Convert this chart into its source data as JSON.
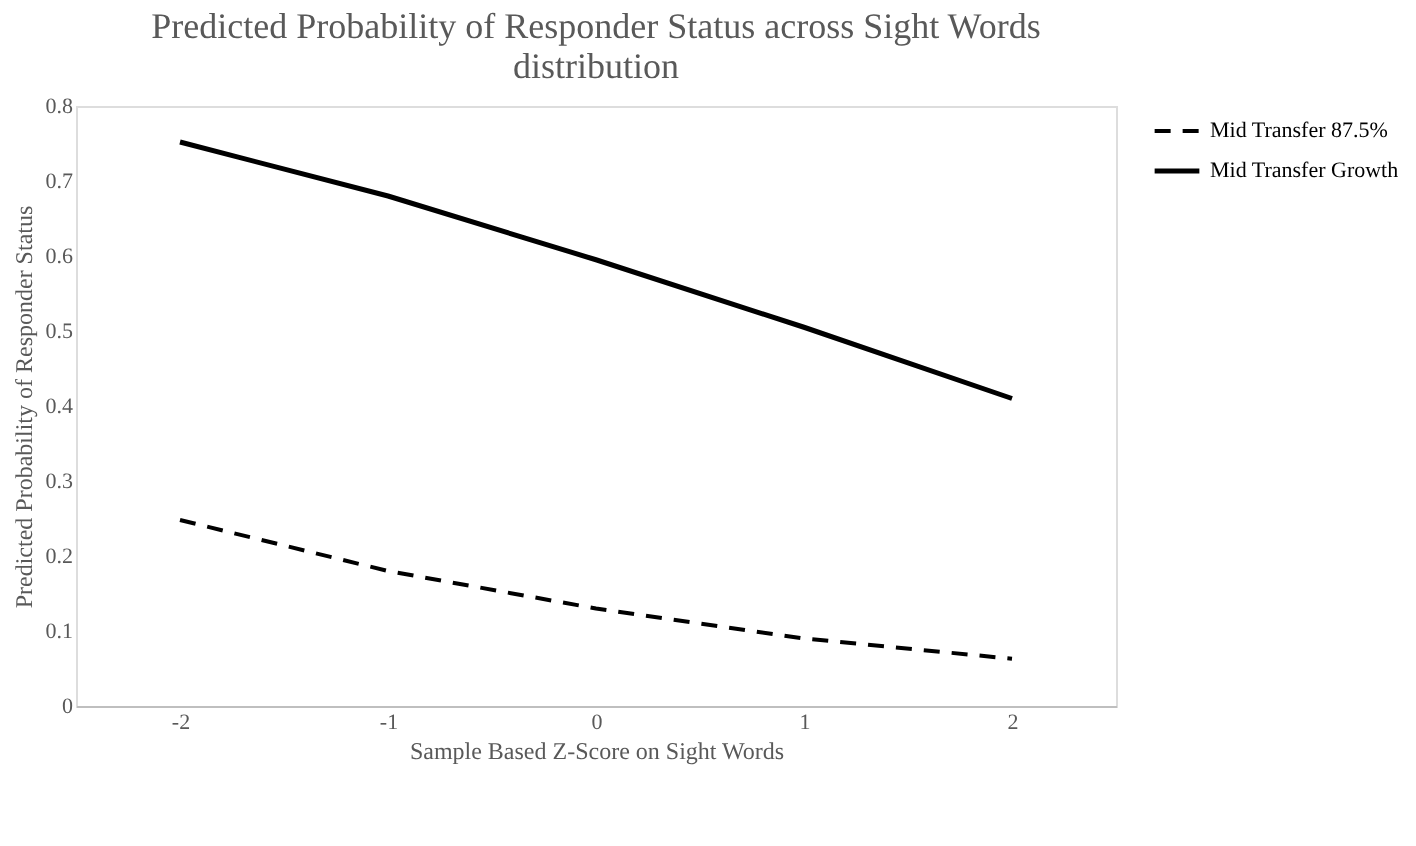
{
  "chart_data": {
    "type": "line",
    "title": "Predicted Probability of Responder Status across Sight Words distribution",
    "xlabel": "Sample Based Z-Score on Sight Words",
    "ylabel": "Predicted Probability of Responder Status",
    "categories": [
      "-2",
      "-1",
      "0",
      "1",
      "2"
    ],
    "series": [
      {
        "name": "Mid Transfer 87.5%",
        "color": "#000000",
        "line_style": "dashed",
        "values": [
          0.248,
          0.18,
          0.13,
          0.09,
          0.063
        ]
      },
      {
        "name": "Mid Transfer Growth",
        "color": "#000000",
        "line_style": "solid",
        "values": [
          0.752,
          0.68,
          0.595,
          0.505,
          0.41
        ]
      }
    ],
    "ylim": [
      0,
      0.8
    ],
    "yticks": [
      0,
      0.1,
      0.2,
      0.3,
      0.4,
      0.5,
      0.6,
      0.7,
      0.8
    ],
    "grid": false,
    "legend": "right",
    "marker": "none"
  }
}
